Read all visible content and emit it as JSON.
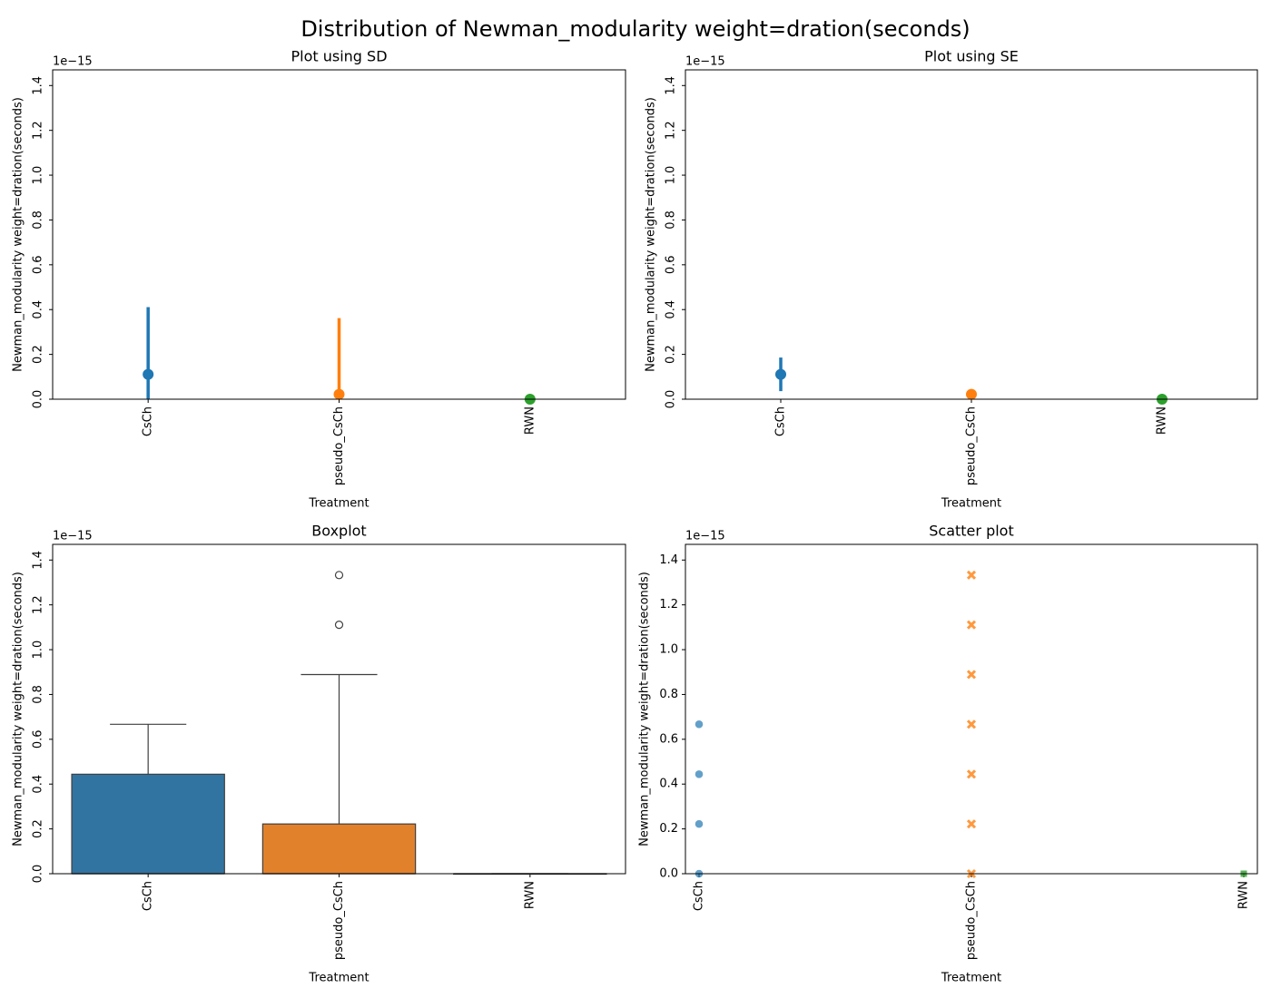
{
  "title": "Distribution of Newman_modularity weight=dration(seconds)",
  "chart_data": [
    {
      "type": "point",
      "title": "Plot using SD",
      "xlabel": "Treatment",
      "ylabel": "Newman_modularity weight=dration(seconds)",
      "y_offset": "1e−15",
      "categories": [
        "CsCh",
        "pseudo_CsCh",
        "RWN"
      ],
      "colors": [
        "#1f77b4",
        "#ff7f0e",
        "#2ca02c"
      ],
      "values": [
        0.111,
        0.022,
        0
      ],
      "errors": [
        0.3,
        0.34,
        0
      ],
      "ylim": [
        0,
        1.47
      ],
      "rotate_yticks": true,
      "yticks": [
        {
          "value": 0,
          "label": "0.0"
        },
        {
          "value": 0.2,
          "label": "0.2"
        },
        {
          "value": 0.4,
          "label": "0.4"
        },
        {
          "value": 0.6,
          "label": "0.6"
        },
        {
          "value": 0.8,
          "label": "0.8"
        },
        {
          "value": 1.0,
          "label": "1.0"
        },
        {
          "value": 1.2,
          "label": "1.2"
        },
        {
          "value": 1.4,
          "label": "1.4"
        }
      ]
    },
    {
      "type": "point",
      "title": "Plot using SE",
      "xlabel": "Treatment",
      "ylabel": "Newman_modularity weight=dration(seconds)",
      "y_offset": "1e−15",
      "categories": [
        "CsCh",
        "pseudo_CsCh",
        "RWN"
      ],
      "colors": [
        "#1f77b4",
        "#ff7f0e",
        "#2ca02c"
      ],
      "values": [
        0.111,
        0.022,
        0
      ],
      "errors": [
        0.075,
        0.008,
        0
      ],
      "ylim": [
        0,
        1.47
      ],
      "rotate_yticks": true,
      "yticks": [
        {
          "value": 0,
          "label": "0.0"
        },
        {
          "value": 0.2,
          "label": "0.2"
        },
        {
          "value": 0.4,
          "label": "0.4"
        },
        {
          "value": 0.6,
          "label": "0.6"
        },
        {
          "value": 0.8,
          "label": "0.8"
        },
        {
          "value": 1.0,
          "label": "1.0"
        },
        {
          "value": 1.2,
          "label": "1.2"
        },
        {
          "value": 1.4,
          "label": "1.4"
        }
      ]
    },
    {
      "type": "box",
      "title": "Boxplot",
      "xlabel": "Treatment",
      "ylabel": "Newman_modularity weight=dration(seconds)",
      "y_offset": "1e−15",
      "categories": [
        "CsCh",
        "pseudo_CsCh",
        "RWN"
      ],
      "colors": [
        "#3274a1",
        "#e1812c",
        "#3a923a"
      ],
      "boxes": [
        {
          "whislo": 0,
          "q1": 0,
          "median": 0,
          "q3": 0.444,
          "whishi": 0.667,
          "fliers": []
        },
        {
          "whislo": 0,
          "q1": 0,
          "median": 0,
          "q3": 0.222,
          "whishi": 0.889,
          "fliers": [
            1.111,
            1.333
          ]
        },
        {
          "whislo": 0,
          "q1": 0,
          "median": 0,
          "q3": 0,
          "whishi": 0,
          "fliers": []
        }
      ],
      "ylim": [
        0,
        1.47
      ],
      "rotate_yticks": true,
      "yticks": [
        {
          "value": 0,
          "label": "0.0"
        },
        {
          "value": 0.2,
          "label": "0.2"
        },
        {
          "value": 0.4,
          "label": "0.4"
        },
        {
          "value": 0.6,
          "label": "0.6"
        },
        {
          "value": 0.8,
          "label": "0.8"
        },
        {
          "value": 1.0,
          "label": "1.0"
        },
        {
          "value": 1.2,
          "label": "1.2"
        },
        {
          "value": 1.4,
          "label": "1.4"
        }
      ]
    },
    {
      "type": "scatter",
      "title": "Scatter plot",
      "xlabel": "Treatment",
      "ylabel": "Newman_modularity weight=dration(seconds)",
      "y_offset": "1e−15",
      "categories": [
        "CsCh",
        "pseudo_CsCh",
        "RWN"
      ],
      "colors": [
        "#1f77b4",
        "#ff7f0e",
        "#2ca02c"
      ],
      "markers": [
        "circle",
        "x",
        "square"
      ],
      "values": [
        [
          0,
          0.222,
          0.444,
          0.667
        ],
        [
          0,
          0.222,
          0.444,
          0.667,
          0.889,
          1.111,
          1.333
        ],
        [
          0
        ]
      ],
      "xlim": [
        -0.05,
        2.05
      ],
      "ylim": [
        0,
        1.47
      ],
      "rotate_yticks": false,
      "yticks": [
        {
          "value": 0,
          "label": "0.0"
        },
        {
          "value": 0.2,
          "label": "0.2"
        },
        {
          "value": 0.4,
          "label": "0.4"
        },
        {
          "value": 0.6,
          "label": "0.6"
        },
        {
          "value": 0.8,
          "label": "0.8"
        },
        {
          "value": 1.0,
          "label": "1.0"
        },
        {
          "value": 1.2,
          "label": "1.2"
        },
        {
          "value": 1.4,
          "label": "1.4"
        }
      ]
    }
  ]
}
